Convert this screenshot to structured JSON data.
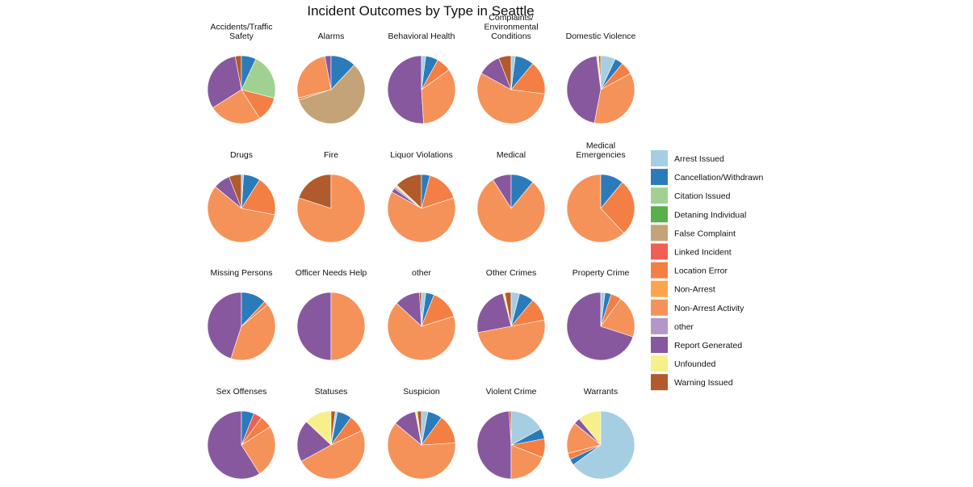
{
  "chart_data": {
    "type": "pie",
    "title": "Incident Outcomes by Type in Seattle",
    "legend_position": "right",
    "categories": [
      "Arrest Issued",
      "Cancellation/Withdrawn",
      "Citation Issued",
      "Detaning Individual",
      "False Complaint",
      "Linked Incident",
      "Location Error",
      "Non-Arrest",
      "Non-Arrest Activity",
      "other",
      "Report Generated",
      "Unfounded",
      "Warning Issued"
    ],
    "colors": {
      "Arrest Issued": "#a6cee3",
      "Cancellation/Withdrawn": "#2b7bba",
      "Citation Issued": "#a1d192",
      "Detaning Individual": "#5aae4c",
      "False Complaint": "#c4a379",
      "Linked Incident": "#ef5f54",
      "Location Error": "#f47f44",
      "Non-Arrest": "#fca54c",
      "Non-Arrest Activity": "#f59259",
      "other": "#b497c9",
      "Report Generated": "#87589e",
      "Unfounded": "#f7ef8a",
      "Warning Issued": "#b15a2c"
    },
    "pies": [
      {
        "name": "Accidents/Traffic\nSafety",
        "slices": [
          {
            "category": "Warning Issued",
            "value": 3
          },
          {
            "category": "Report Generated",
            "value": 31
          },
          {
            "category": "Non-Arrest Activity",
            "value": 25
          },
          {
            "category": "Location Error",
            "value": 12
          },
          {
            "category": "Citation Issued",
            "value": 22
          },
          {
            "category": "Cancellation/Withdrawn",
            "value": 7
          }
        ]
      },
      {
        "name": "Alarms",
        "slices": [
          {
            "category": "Report Generated",
            "value": 3
          },
          {
            "category": "Non-Arrest Activity",
            "value": 26
          },
          {
            "category": "Location Error",
            "value": 1
          },
          {
            "category": "False Complaint",
            "value": 58
          },
          {
            "category": "Cancellation/Withdrawn",
            "value": 12
          }
        ]
      },
      {
        "name": "Behavioral Health",
        "slices": [
          {
            "category": "Report Generated",
            "value": 51
          },
          {
            "category": "Non-Arrest Activity",
            "value": 34
          },
          {
            "category": "Location Error",
            "value": 7
          },
          {
            "category": "Cancellation/Withdrawn",
            "value": 6
          },
          {
            "category": "Arrest Issued",
            "value": 2
          }
        ]
      },
      {
        "name": "Complaints/\nEnvironmental\nConditions",
        "slices": [
          {
            "category": "Warning Issued",
            "value": 6
          },
          {
            "category": "Report Generated",
            "value": 11
          },
          {
            "category": "Non-Arrest Activity",
            "value": 56
          },
          {
            "category": "Location Error",
            "value": 16
          },
          {
            "category": "Cancellation/Withdrawn",
            "value": 9
          },
          {
            "category": "Arrest Issued",
            "value": 2
          }
        ]
      },
      {
        "name": "Domestic Violence",
        "slices": [
          {
            "category": "Warning Issued",
            "value": 1
          },
          {
            "category": "Unfounded",
            "value": 1
          },
          {
            "category": "Report Generated",
            "value": 45
          },
          {
            "category": "Non-Arrest Activity",
            "value": 36
          },
          {
            "category": "Location Error",
            "value": 6
          },
          {
            "category": "Cancellation/Withdrawn",
            "value": 4
          },
          {
            "category": "Arrest Issued",
            "value": 7
          }
        ]
      },
      {
        "name": "Drugs",
        "slices": [
          {
            "category": "Warning Issued",
            "value": 6
          },
          {
            "category": "Report Generated",
            "value": 8
          },
          {
            "category": "Non-Arrest Activity",
            "value": 58
          },
          {
            "category": "Location Error",
            "value": 19
          },
          {
            "category": "Cancellation/Withdrawn",
            "value": 8
          },
          {
            "category": "Arrest Issued",
            "value": 1
          }
        ]
      },
      {
        "name": "Fire",
        "slices": [
          {
            "category": "Warning Issued",
            "value": 20
          },
          {
            "category": "Non-Arrest Activity",
            "value": 80
          }
        ]
      },
      {
        "name": "Liquor Violations",
        "slices": [
          {
            "category": "Warning Issued",
            "value": 13
          },
          {
            "category": "Unfounded",
            "value": 1
          },
          {
            "category": "other",
            "value": 1
          },
          {
            "category": "Report Generated",
            "value": 2
          },
          {
            "category": "Non-Arrest Activity",
            "value": 63
          },
          {
            "category": "Location Error",
            "value": 16
          },
          {
            "category": "Cancellation/Withdrawn",
            "value": 4
          }
        ]
      },
      {
        "name": "Medical",
        "slices": [
          {
            "category": "Report Generated",
            "value": 9
          },
          {
            "category": "Non-Arrest Activity",
            "value": 80
          },
          {
            "category": "Cancellation/Withdrawn",
            "value": 11
          }
        ]
      },
      {
        "name": "Medical\nEmergencies",
        "slices": [
          {
            "category": "Non-Arrest Activity",
            "value": 62
          },
          {
            "category": "Location Error",
            "value": 27
          },
          {
            "category": "Cancellation/Withdrawn",
            "value": 11
          }
        ]
      },
      {
        "name": "Missing Persons",
        "slices": [
          {
            "category": "Report Generated",
            "value": 45
          },
          {
            "category": "Non-Arrest Activity",
            "value": 41
          },
          {
            "category": "Location Error",
            "value": 2
          },
          {
            "category": "Cancellation/Withdrawn",
            "value": 12
          }
        ]
      },
      {
        "name": "Officer Needs Help",
        "slices": [
          {
            "category": "Report Generated",
            "value": 50
          },
          {
            "category": "Non-Arrest Activity",
            "value": 50
          }
        ]
      },
      {
        "name": "other",
        "slices": [
          {
            "category": "Warning Issued",
            "value": 1
          },
          {
            "category": "Report Generated",
            "value": 12
          },
          {
            "category": "Non-Arrest Activity",
            "value": 66
          },
          {
            "category": "Location Error",
            "value": 14
          },
          {
            "category": "Cancellation/Withdrawn",
            "value": 4
          },
          {
            "category": "Arrest Issued",
            "value": 2
          }
        ]
      },
      {
        "name": "Other Crimes",
        "slices": [
          {
            "category": "Warning Issued",
            "value": 3
          },
          {
            "category": "Unfounded",
            "value": 1
          },
          {
            "category": "Report Generated",
            "value": 24
          },
          {
            "category": "Non-Arrest Activity",
            "value": 50
          },
          {
            "category": "Location Error",
            "value": 11
          },
          {
            "category": "Cancellation/Withdrawn",
            "value": 7
          },
          {
            "category": "Arrest Issued",
            "value": 4
          }
        ]
      },
      {
        "name": "Property Crime",
        "slices": [
          {
            "category": "Report Generated",
            "value": 70
          },
          {
            "category": "Non-Arrest Activity",
            "value": 20
          },
          {
            "category": "Location Error",
            "value": 5
          },
          {
            "category": "Cancellation/Withdrawn",
            "value": 3
          },
          {
            "category": "Arrest Issued",
            "value": 2
          }
        ]
      },
      {
        "name": "Sex Offenses",
        "slices": [
          {
            "category": "Report Generated",
            "value": 59
          },
          {
            "category": "Non-Arrest Activity",
            "value": 25
          },
          {
            "category": "Location Error",
            "value": 6
          },
          {
            "category": "Linked Incident",
            "value": 4
          },
          {
            "category": "Cancellation/Withdrawn",
            "value": 6
          }
        ]
      },
      {
        "name": "Statuses",
        "slices": [
          {
            "category": "Unfounded",
            "value": 13
          },
          {
            "category": "Report Generated",
            "value": 20
          },
          {
            "category": "Non-Arrest Activity",
            "value": 49
          },
          {
            "category": "Location Error",
            "value": 8
          },
          {
            "category": "Cancellation/Withdrawn",
            "value": 7
          },
          {
            "category": "Arrest Issued",
            "value": 1
          },
          {
            "category": "Warning Issued",
            "value": 2
          }
        ]
      },
      {
        "name": "Suspicion",
        "slices": [
          {
            "category": "Warning Issued",
            "value": 2
          },
          {
            "category": "Unfounded",
            "value": 1
          },
          {
            "category": "Report Generated",
            "value": 11
          },
          {
            "category": "Non-Arrest Activity",
            "value": 62
          },
          {
            "category": "Location Error",
            "value": 14
          },
          {
            "category": "Cancellation/Withdrawn",
            "value": 7
          },
          {
            "category": "Arrest Issued",
            "value": 3
          }
        ]
      },
      {
        "name": "Violent Crime",
        "slices": [
          {
            "category": "Warning Issued",
            "value": 1
          },
          {
            "category": "Report Generated",
            "value": 49
          },
          {
            "category": "Non-Arrest Activity",
            "value": 19
          },
          {
            "category": "Location Error",
            "value": 9
          },
          {
            "category": "Cancellation/Withdrawn",
            "value": 5
          },
          {
            "category": "Arrest Issued",
            "value": 17
          }
        ]
      },
      {
        "name": "Warrants",
        "slices": [
          {
            "category": "Unfounded",
            "value": 11
          },
          {
            "category": "Report Generated",
            "value": 3
          },
          {
            "category": "Non-Arrest Activity",
            "value": 15
          },
          {
            "category": "Location Error",
            "value": 3
          },
          {
            "category": "Cancellation/Withdrawn",
            "value": 3
          },
          {
            "category": "Arrest Issued",
            "value": 65
          }
        ]
      }
    ]
  }
}
